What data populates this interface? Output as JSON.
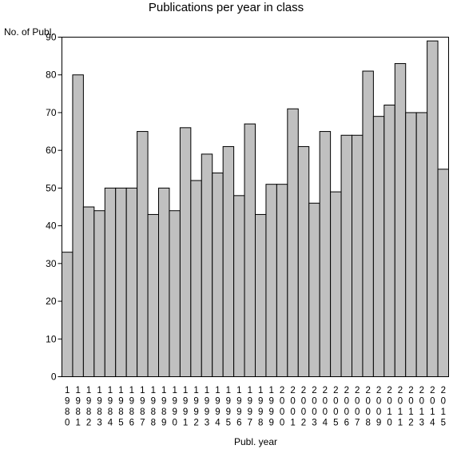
{
  "chart_data": {
    "type": "bar",
    "title": "Publications per year in class",
    "ylabel": "No. of Publ.",
    "xlabel": "Publ. year",
    "ylim": [
      0,
      90
    ],
    "yticks": [
      0,
      10,
      20,
      30,
      40,
      50,
      60,
      70,
      80,
      90
    ],
    "categories": [
      "1980",
      "1981",
      "1982",
      "1983",
      "1984",
      "1985",
      "1986",
      "1987",
      "1988",
      "1989",
      "1990",
      "1991",
      "1992",
      "1993",
      "1994",
      "1995",
      "1996",
      "1997",
      "1998",
      "1999",
      "2000",
      "2001",
      "2002",
      "2003",
      "2004",
      "2005",
      "2006",
      "2007",
      "2008",
      "2009",
      "2010",
      "2011",
      "2012",
      "2013",
      "2014",
      "2015"
    ],
    "values": [
      33,
      80,
      45,
      44,
      50,
      50,
      50,
      65,
      43,
      50,
      44,
      66,
      52,
      59,
      54,
      61,
      48,
      67,
      43,
      51,
      51,
      71,
      61,
      46,
      65,
      49,
      64,
      64,
      81,
      69,
      72,
      83,
      70,
      70,
      89,
      55
    ],
    "bar_color": "#c0c0c0",
    "grid": false,
    "legend": "none"
  }
}
